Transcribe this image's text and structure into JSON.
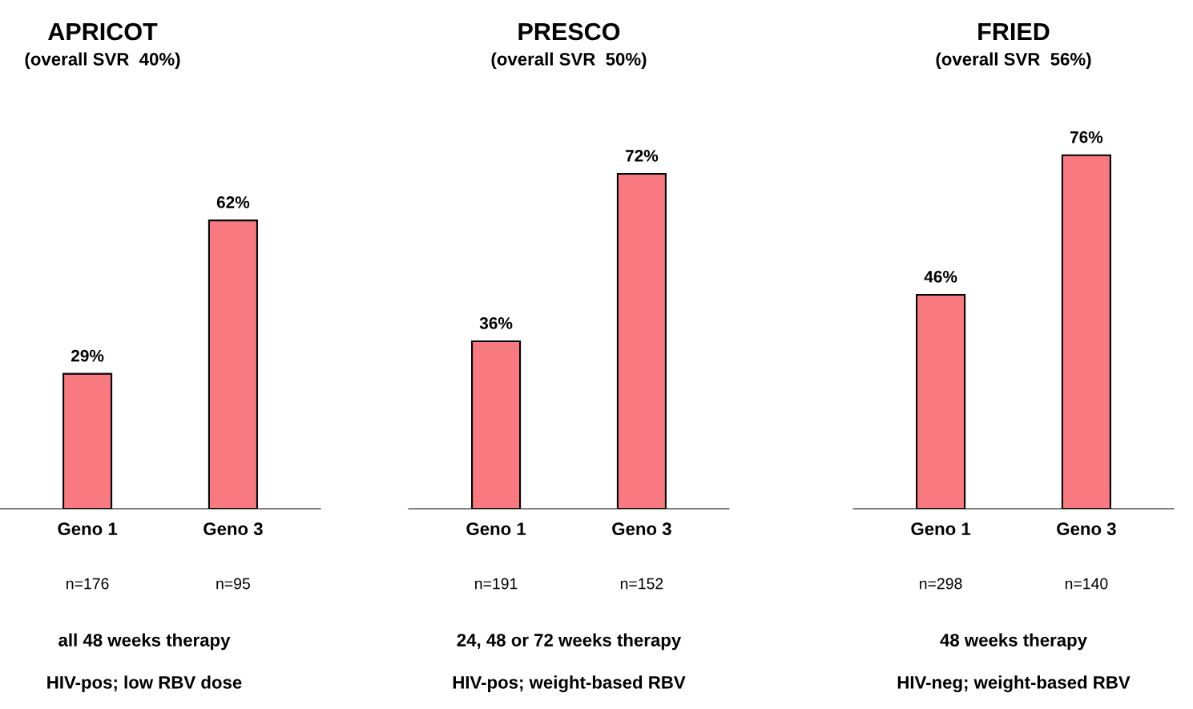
{
  "chart_data": [
    {
      "type": "bar",
      "title": "APRICOT",
      "subtitle": "(overall SVR  40%)",
      "categories": [
        "Geno 1",
        "Geno 3"
      ],
      "values": [
        29,
        62
      ],
      "value_labels": [
        "29%",
        "62%"
      ],
      "color": "#f87a80",
      "grid": false,
      "legend": false,
      "annotations": [
        "n=176",
        "n=95",
        "all 48 weeks therapy",
        "HIV-pos; low RBV dose"
      ]
    },
    {
      "type": "bar",
      "title": "PRESCO",
      "subtitle": "(overall SVR  50%)",
      "categories": [
        "Geno 1",
        "Geno 3"
      ],
      "values": [
        36,
        72
      ],
      "value_labels": [
        "36%",
        "72%"
      ],
      "color": "#f87a80",
      "grid": false,
      "legend": false,
      "annotations": [
        "n=191",
        "n=152",
        "24, 48 or 72 weeks therapy",
        "HIV-pos; weight-based RBV"
      ]
    },
    {
      "type": "bar",
      "title": "FRIED",
      "subtitle": "(overall SVR  56%)",
      "categories": [
        "Geno 1",
        "Geno 3"
      ],
      "values": [
        46,
        76
      ],
      "value_labels": [
        "46%",
        "76%"
      ],
      "color": "#f87a80",
      "grid": false,
      "legend": false,
      "annotations": [
        "n=298",
        "n=140",
        "48 weeks therapy",
        "HIV-neg; weight-based RBV"
      ]
    }
  ]
}
